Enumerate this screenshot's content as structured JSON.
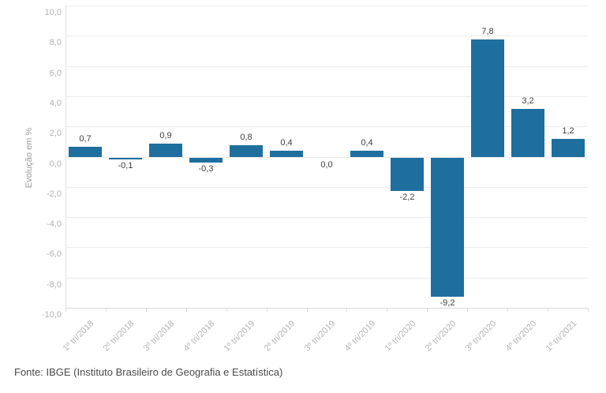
{
  "chart_data": {
    "type": "bar",
    "title": "",
    "ylabel": "Evolução em %",
    "xlabel": "",
    "ylim": [
      -10,
      10
    ],
    "grid": true,
    "legend": "none",
    "colors": {
      "bar": "#1f6f9e"
    },
    "categories": [
      "1º tri/2018",
      "2º tri/2018",
      "3º tri/2018",
      "4º tri/2018",
      "1º tri/2019",
      "2º tri/2019",
      "3º tri/2019",
      "4º tri/2019",
      "1º tri/2020",
      "2º tri/2020",
      "3º tri/2020",
      "4º tri/2020",
      "1º tri/2021"
    ],
    "values": [
      0.7,
      -0.1,
      0.9,
      -0.3,
      0.8,
      0.4,
      0.0,
      0.4,
      -2.2,
      -9.2,
      7.8,
      3.2,
      1.2
    ],
    "points": [
      {
        "category": "1º tri/2018",
        "value": 0.7,
        "label": "0,7"
      },
      {
        "category": "2º tri/2018",
        "value": -0.1,
        "label": "-0,1"
      },
      {
        "category": "3º tri/2018",
        "value": 0.9,
        "label": "0,9"
      },
      {
        "category": "4º tri/2018",
        "value": -0.3,
        "label": "-0,3"
      },
      {
        "category": "1º tri/2019",
        "value": 0.8,
        "label": "0,8"
      },
      {
        "category": "2º tri/2019",
        "value": 0.4,
        "label": "0,4"
      },
      {
        "category": "3º tri/2019",
        "value": 0.0,
        "label": "0,0"
      },
      {
        "category": "4º tri/2019",
        "value": 0.4,
        "label": "0,4"
      },
      {
        "category": "1º tri/2020",
        "value": -2.2,
        "label": "-2,2"
      },
      {
        "category": "2º tri/2020",
        "value": -9.2,
        "label": "-9,2"
      },
      {
        "category": "3º tri/2020",
        "value": 7.8,
        "label": "7,8"
      },
      {
        "category": "4º tri/2020",
        "value": 3.2,
        "label": "3,2"
      },
      {
        "category": "1º tri/2021",
        "value": 1.2,
        "label": "1,2"
      }
    ],
    "y_ticks": [
      {
        "value": 10,
        "label": "10,0"
      },
      {
        "value": 8,
        "label": "8,0"
      },
      {
        "value": 6,
        "label": "6,0"
      },
      {
        "value": 4,
        "label": "4,0"
      },
      {
        "value": 2,
        "label": "2,0"
      },
      {
        "value": 0,
        "label": "0,0"
      },
      {
        "value": -2,
        "label": "-2,0"
      },
      {
        "value": -4,
        "label": "-4,0"
      },
      {
        "value": -6,
        "label": "-6,0"
      },
      {
        "value": -8,
        "label": "-8,0"
      },
      {
        "value": -10,
        "label": "-10,0"
      }
    ],
    "source_note": "Fonte: IBGE (Instituto Brasileiro de Geografia e Estatística)"
  }
}
